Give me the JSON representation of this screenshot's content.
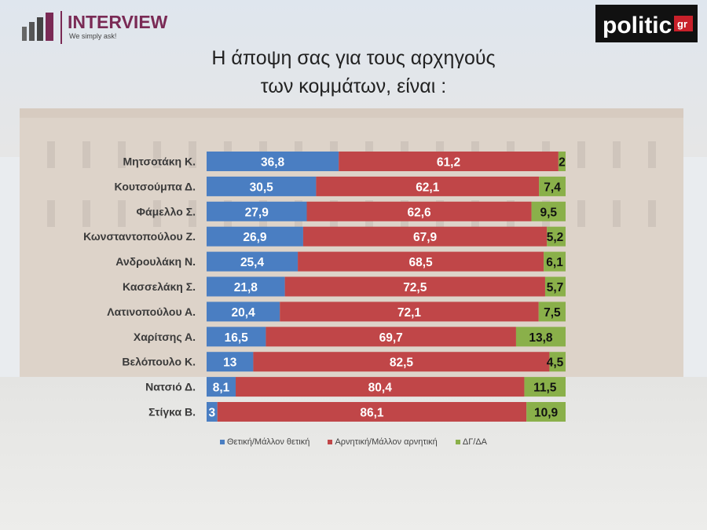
{
  "brand": {
    "interview_name": "INTERVIEW",
    "interview_tagline": "We simply ask!",
    "politic_name": "politic",
    "politic_suffix": "gr"
  },
  "title": {
    "line1": "Η άποψη σας για τους αρχηγούς",
    "line2": "των κομμάτων,  είναι :"
  },
  "colors": {
    "positive": "#4a7ec2",
    "negative": "#c04648",
    "dk": "#8ab04a",
    "label_on_color": "#ffffff",
    "label_on_green": "#111111"
  },
  "chart_data": {
    "type": "bar",
    "orientation": "horizontal",
    "stacked": true,
    "categories": [
      "Μητσοτάκη Κ.",
      "Κουτσούμπα Δ.",
      "Φάμελλο Σ.",
      "Κωνσταντοπούλου Ζ.",
      "Ανδρουλάκη Ν.",
      "Κασσελάκη Σ.",
      "Λατινοπούλου Α.",
      "Χαρίτσης Α.",
      "Βελόπουλο Κ.",
      "Νατσιό Δ.",
      "Στίγκα Β."
    ],
    "series": [
      {
        "name": "Θετική/Μάλλον θετική",
        "values": [
          36.8,
          30.5,
          27.9,
          26.9,
          25.4,
          21.8,
          20.4,
          16.5,
          13,
          8.1,
          3
        ],
        "labels": [
          "36,8",
          "30,5",
          "27,9",
          "26,9",
          "25,4",
          "21,8",
          "20,4",
          "16,5",
          "13",
          "8,1",
          "3"
        ]
      },
      {
        "name": "Αρνητική/Μάλλον αρνητική",
        "values": [
          61.2,
          62.1,
          62.6,
          67.9,
          68.5,
          72.5,
          72.1,
          69.7,
          82.5,
          80.4,
          86.1
        ],
        "labels": [
          "61,2",
          "62,1",
          "62,6",
          "67,9",
          "68,5",
          "72,5",
          "72,1",
          "69,7",
          "82,5",
          "80,4",
          "86,1"
        ]
      },
      {
        "name": "ΔΓ/ΔΑ",
        "values": [
          2,
          7.4,
          9.5,
          5.2,
          6.1,
          5.7,
          7.5,
          13.8,
          4.5,
          11.5,
          10.9
        ],
        "labels": [
          "2",
          "7,4",
          "9,5",
          "5,2",
          "6,1",
          "5,7",
          "7,5",
          "13,8",
          "4,5",
          "11,5",
          "10,9"
        ]
      }
    ],
    "xlim": [
      0,
      100
    ],
    "grid": false,
    "legend_position": "bottom"
  }
}
